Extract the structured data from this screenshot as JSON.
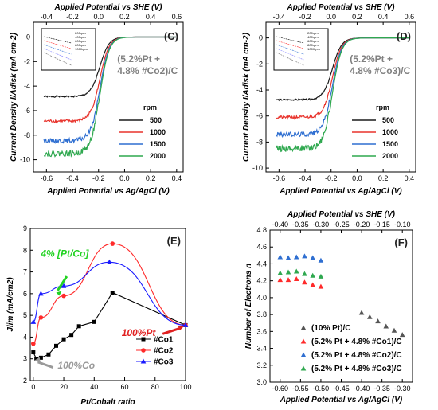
{
  "chart_data": [
    {
      "panel": "(C)",
      "type": "line",
      "annotation": "(5.2%Pt +\n4.8% #Co2)/C",
      "xlabel": "Applied Potential vs Ag/AgCl (V)",
      "ylabel": "Current Density I/Adisk (mA cm-2)",
      "x2label": "Applied Potential vs SHE (V)",
      "xlim": [
        -0.7,
        0.45
      ],
      "ylim": [
        -11,
        1.2
      ],
      "xticks": [
        "-0.6",
        "-0.4",
        "-0.2",
        "0.0",
        "0.2",
        "0.4"
      ],
      "x2ticks": [
        "-0.4",
        "-0.2",
        "0.0",
        "0.2",
        "0.4",
        "0.6"
      ],
      "yticks": [
        "0",
        "-2",
        "-4",
        "-6",
        "-8",
        "-10"
      ],
      "legend_title": "rpm",
      "legend_position": "bottom-right",
      "series": [
        {
          "name": "500",
          "color": "#1a1a1a",
          "limit": -4.85
        },
        {
          "name": "1000",
          "color": "#e8322b",
          "limit": -6.85
        },
        {
          "name": "1500",
          "color": "#2f6fd1",
          "limit": -8.45
        },
        {
          "name": "2000",
          "color": "#2fa84f",
          "limit": -9.5
        }
      ],
      "inset": {
        "legend": [
          "200rpm",
          "400rpm",
          "600rpm",
          "800rpm",
          "1000rpm"
        ]
      }
    },
    {
      "panel": "(D)",
      "type": "line",
      "annotation": "(5.2%Pt +\n4.8% #Co3)/C",
      "xlabel": "Applied Potential vs Ag/AgCl (V)",
      "ylabel": "Current Density I/Adisk (mA cm-2)",
      "x2label": "Applied Potential vs SHE (V)",
      "xlim": [
        -0.7,
        0.45
      ],
      "ylim": [
        -10.3,
        1.2
      ],
      "xticks": [
        "-0.6",
        "-0.4",
        "-0.2",
        "0.0",
        "0.2",
        "0.4"
      ],
      "x2ticks": [
        "-0.4",
        "-0.2",
        "0.0",
        "0.2",
        "0.4",
        "0.6"
      ],
      "yticks": [
        "0",
        "-2",
        "-4",
        "-6",
        "-8",
        "-10"
      ],
      "legend_title": "rpm",
      "legend_position": "bottom-right",
      "series": [
        {
          "name": "500",
          "color": "#1a1a1a",
          "limit": -4.75
        },
        {
          "name": "1000",
          "color": "#e8322b",
          "limit": -6.1
        },
        {
          "name": "1500",
          "color": "#2f6fd1",
          "limit": -7.4
        },
        {
          "name": "2000",
          "color": "#2fa84f",
          "limit": -8.5
        }
      ],
      "inset": {
        "legend": [
          "200rpm",
          "400rpm",
          "600rpm",
          "800rpm",
          "1000rpm"
        ]
      }
    },
    {
      "panel": "(E)",
      "type": "line",
      "xlabel": "Pt/Cobalt ratio",
      "ylabel": "Jlim (mA/cm2)",
      "xlim": [
        -2,
        100
      ],
      "ylim": [
        2,
        9
      ],
      "xticks": [
        "0",
        "20",
        "40",
        "60",
        "80",
        "100"
      ],
      "yticks": [
        "2",
        "3",
        "4",
        "5",
        "6",
        "7",
        "8",
        "9"
      ],
      "annotations": [
        "4% [Pt/Co]",
        "100%Pt",
        "100%Co"
      ],
      "legend_position": "bottom-right",
      "series": [
        {
          "name": "#Co1",
          "color": "#000000",
          "marker": "square",
          "points": [
            [
              0,
              3.3
            ],
            [
              2,
              3.0
            ],
            [
              5,
              3.05
            ],
            [
              10,
              3.2
            ],
            [
              15,
              3.6
            ],
            [
              20,
              3.9
            ],
            [
              25,
              4.1
            ],
            [
              30,
              4.5
            ],
            [
              40,
              4.7
            ],
            [
              52,
              6.05
            ],
            [
              100,
              4.55
            ]
          ]
        },
        {
          "name": "#Co2",
          "color": "#ff2a2a",
          "marker": "circle",
          "points": [
            [
              0,
              3.7
            ],
            [
              5,
              4.9
            ],
            [
              20,
              5.9
            ],
            [
              52,
              8.3
            ],
            [
              100,
              4.55
            ]
          ]
        },
        {
          "name": "#Co3",
          "color": "#1a1aff",
          "marker": "triangle",
          "points": [
            [
              0,
              4.7
            ],
            [
              5,
              6.0
            ],
            [
              20,
              6.35
            ],
            [
              50,
              7.45
            ],
            [
              100,
              4.55
            ]
          ]
        }
      ]
    },
    {
      "panel": "(F)",
      "type": "scatter",
      "xlabel": "Applied Potential vs Ag/AgCl (V)",
      "ylabel": "Number of Electrons n",
      "x2label": "Applied Potential vs SHE (V)",
      "xlim": [
        -0.625,
        -0.275
      ],
      "ylim": [
        3.0,
        4.8
      ],
      "xticks": [
        "-0.60",
        "-0.55",
        "-0.50",
        "-0.45",
        "-0.40",
        "-0.35",
        "-0.30"
      ],
      "x2ticks": [
        "-0.40",
        "-0.35",
        "-0.30",
        "-0.25",
        "-0.20",
        "-0.15",
        "-0.10"
      ],
      "yticks": [
        "3.0",
        "3.2",
        "3.4",
        "3.6",
        "3.8",
        "4.0",
        "4.2",
        "4.4",
        "4.6",
        "4.8"
      ],
      "legend_position": "bottom-right",
      "series": [
        {
          "name": "(10% Pt)/C",
          "color": "#555555",
          "points": [
            [
              -0.4,
              3.82
            ],
            [
              -0.38,
              3.77
            ],
            [
              -0.36,
              3.72
            ],
            [
              -0.34,
              3.66
            ],
            [
              -0.32,
              3.61
            ],
            [
              -0.3,
              3.56
            ]
          ]
        },
        {
          "name": "(5.2% Pt + 4.8% #Co1)/C",
          "color": "#ff2a2a",
          "points": [
            [
              -0.6,
              4.21
            ],
            [
              -0.58,
              4.21
            ],
            [
              -0.56,
              4.22
            ],
            [
              -0.54,
              4.18
            ],
            [
              -0.52,
              4.15
            ],
            [
              -0.5,
              4.13
            ]
          ]
        },
        {
          "name": "(5.2% Pt + 4.8% #Co2)/C",
          "color": "#2f6fd1",
          "points": [
            [
              -0.6,
              4.48
            ],
            [
              -0.58,
              4.47
            ],
            [
              -0.56,
              4.48
            ],
            [
              -0.54,
              4.49
            ],
            [
              -0.52,
              4.47
            ],
            [
              -0.5,
              4.44
            ]
          ]
        },
        {
          "name": "(5.2% Pt + 4.8% #Co3)/C",
          "color": "#2fa84f",
          "points": [
            [
              -0.6,
              4.29
            ],
            [
              -0.58,
              4.3
            ],
            [
              -0.56,
              4.31
            ],
            [
              -0.54,
              4.28
            ],
            [
              -0.52,
              4.26
            ],
            [
              -0.5,
              4.25
            ]
          ]
        }
      ]
    }
  ]
}
